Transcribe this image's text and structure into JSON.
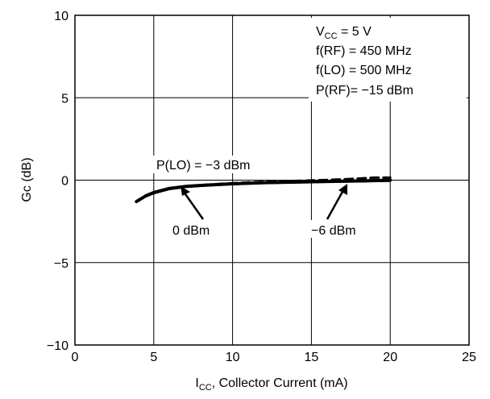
{
  "chart_data": {
    "type": "line",
    "xlabel": "I",
    "xlabel_sub": "CC",
    "xlabel_rest": ", Collector Current (mA)",
    "ylabel": "Gc (dB)",
    "xlim": [
      0,
      25
    ],
    "ylim": [
      -10,
      10
    ],
    "x_ticks": [
      "0",
      "5",
      "10",
      "15",
      "20",
      "25"
    ],
    "y_ticks": [
      "10",
      "5",
      "0",
      "−5",
      "−10"
    ],
    "x_tick_values": [
      0,
      5,
      10,
      15,
      20,
      25
    ],
    "y_tick_values": [
      10,
      5,
      0,
      -5,
      -10
    ],
    "grid": true,
    "conditions": {
      "vcc_main": "V",
      "vcc_sub": "CC",
      "vcc_rest": " = 5 V",
      "f_rf": "f(RF) = 450 MHz",
      "f_lo": "f(LO) = 500 MHz",
      "p_rf": "P(RF)= −15 dBm"
    },
    "series": [
      {
        "name": "P(LO) = −3 dBm",
        "style": "solid-thick",
        "x": [
          3.9,
          4.5,
          5.0,
          6.0,
          7.0,
          8.0,
          10.0,
          12.0,
          15.0,
          18.0,
          20.0
        ],
        "y": [
          -1.3,
          -0.95,
          -0.75,
          -0.5,
          -0.38,
          -0.32,
          -0.22,
          -0.15,
          -0.1,
          -0.05,
          0.0
        ]
      },
      {
        "name": "0 dBm",
        "style": "solid",
        "x": [
          4.5,
          5.0,
          6.0,
          7.0,
          8.0,
          10.0,
          12.0,
          15.0,
          18.0,
          20.0
        ],
        "y": [
          -1.0,
          -0.8,
          -0.55,
          -0.42,
          -0.35,
          -0.25,
          -0.18,
          -0.12,
          -0.08,
          -0.05
        ]
      },
      {
        "name": "−6 dBm",
        "style": "dashed",
        "x": [
          6.5,
          8.0,
          10.0,
          12.0,
          15.0,
          17.0,
          18.0,
          19.0,
          20.0
        ],
        "y": [
          -0.45,
          -0.3,
          -0.18,
          -0.1,
          -0.02,
          0.05,
          0.1,
          0.15,
          0.15
        ]
      }
    ],
    "annotations": {
      "plo_label": "P(LO) = −3 dBm",
      "zero_label": "0 dBm",
      "minus6_label": "−6 dBm"
    }
  }
}
